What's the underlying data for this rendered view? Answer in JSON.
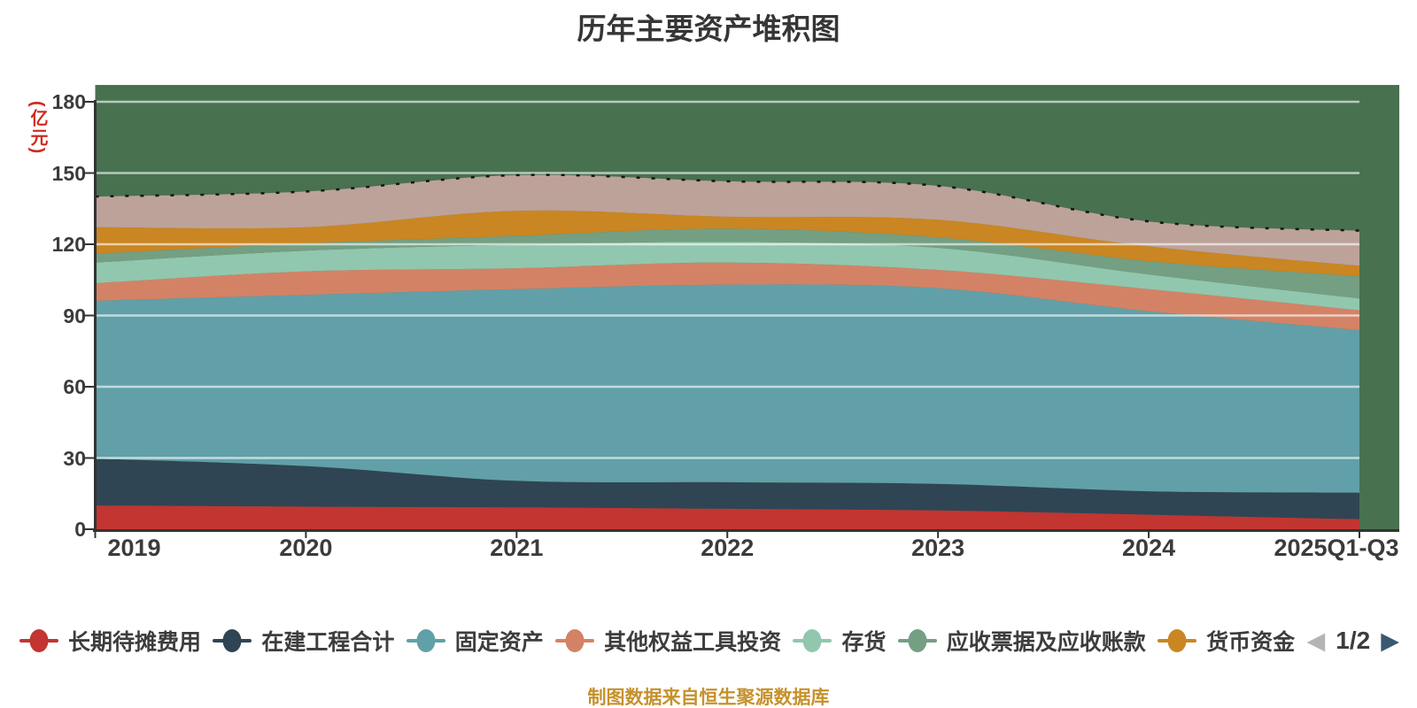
{
  "title": "历年主要资产堆积图",
  "y_axis": {
    "unit_label": "(亿元)",
    "ticks": [
      0,
      30,
      60,
      90,
      120,
      150,
      180
    ],
    "max": 180
  },
  "x_axis": {
    "categories": [
      "2019",
      "2020",
      "2021",
      "2022",
      "2023",
      "2024",
      "2025Q1-Q3"
    ]
  },
  "legend": {
    "items": [
      {
        "label": "长期待摊费用",
        "color": "#c23531"
      },
      {
        "label": "在建工程合计",
        "color": "#2f4554"
      },
      {
        "label": "固定资产",
        "color": "#61a0a8"
      },
      {
        "label": "其他权益工具投资",
        "color": "#d48265"
      },
      {
        "label": "存货",
        "color": "#91c7ae"
      },
      {
        "label": "应收票据及应收账款",
        "color": "#749f83"
      },
      {
        "label": "货币资金",
        "color": "#ca8622"
      }
    ],
    "pagination": {
      "current": "1/2",
      "prev_icon": "left-arrow",
      "next_icon": "right-arrow",
      "prev_color": "#b4b4b4",
      "next_color": "#3a5870"
    }
  },
  "source_note": "制图数据来自恒生聚源数据库",
  "chart_data": {
    "type": "area",
    "stacked": true,
    "smooth": true,
    "title": "历年主要资产堆积图",
    "xlabel": "",
    "ylabel": "(亿元)",
    "ylim": [
      0,
      180
    ],
    "y_tick_interval": 30,
    "grid": true,
    "legend_position": "bottom",
    "plot_background": "#487150",
    "gridline_color": "rgba(255,255,255,0.62)",
    "total_outline": {
      "style": "dashed",
      "color": "#141414"
    },
    "x": [
      "2019",
      "2020",
      "2021",
      "2022",
      "2023",
      "2024",
      "2025Q1-Q3"
    ],
    "series": [
      {
        "name": "长期待摊费用",
        "color": "#c23531",
        "values": [
          10.0,
          9.5,
          9.2,
          8.6,
          7.9,
          6.1,
          4.2
        ]
      },
      {
        "name": "在建工程合计",
        "color": "#2f4554",
        "values": [
          19.7,
          17.1,
          11.2,
          11.2,
          11.2,
          9.9,
          11.2
        ]
      },
      {
        "name": "固定资产",
        "color": "#61a0a8",
        "values": [
          66.5,
          72.1,
          80.7,
          83.2,
          82.4,
          75.8,
          68.4
        ]
      },
      {
        "name": "其他权益工具投资",
        "color": "#d48265",
        "values": [
          7.4,
          9.9,
          8.8,
          9.3,
          7.7,
          9.3,
          8.4
        ]
      },
      {
        "name": "存货",
        "color": "#91c7ae",
        "values": [
          8.7,
          8.7,
          9.9,
          8.7,
          9.3,
          6.2,
          5.0
        ]
      },
      {
        "name": "应收票据及应收账款",
        "color": "#749f83",
        "values": [
          3.7,
          3.1,
          3.7,
          5.6,
          4.4,
          5.6,
          9.3
        ]
      },
      {
        "name": "货币资金",
        "color": "#ca8622",
        "values": [
          11.2,
          6.8,
          10.6,
          5.0,
          7.4,
          6.2,
          4.4
        ]
      },
      {
        "name": "",
        "color": "#bda29a",
        "values": [
          12.9,
          15.0,
          15.0,
          14.9,
          14.3,
          10.5,
          14.8
        ]
      }
    ],
    "stack_totals": [
      140.1,
      142.2,
      149.1,
      146.5,
      144.6,
      129.6,
      125.7
    ]
  }
}
